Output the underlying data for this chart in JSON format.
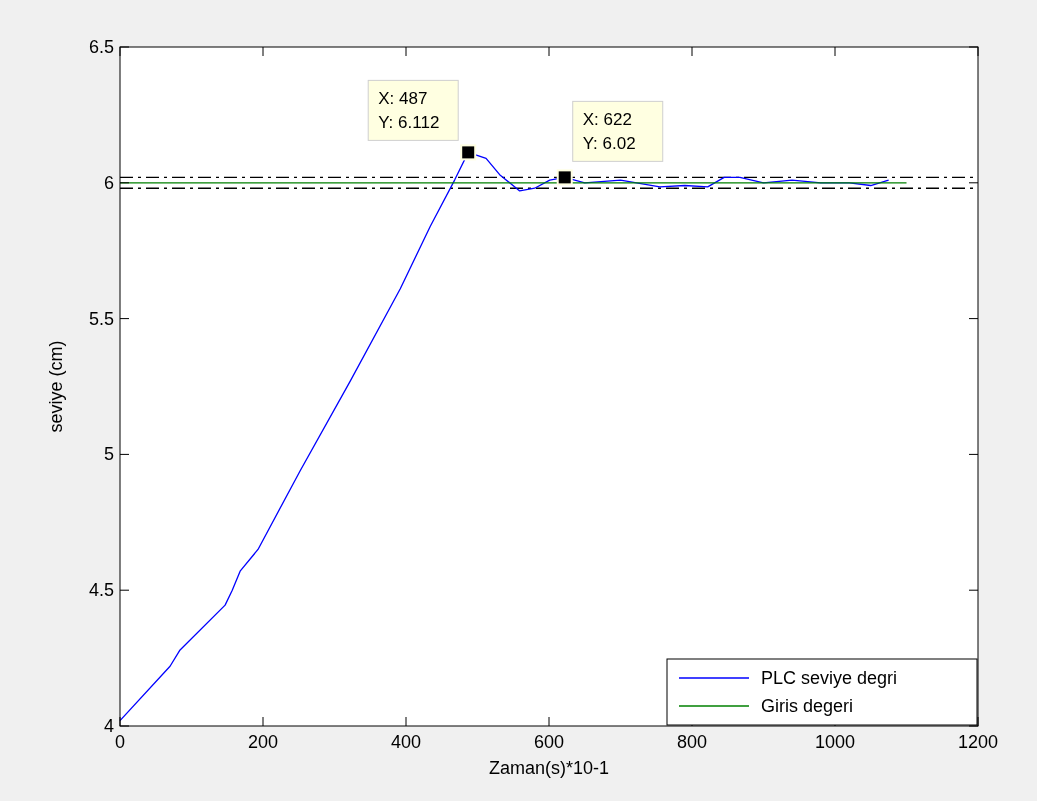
{
  "chart_data": {
    "type": "line",
    "xlabel": "Zaman(s)*10-1",
    "ylabel": "seviye (cm)",
    "xlim": [
      0,
      1200
    ],
    "xticks": [
      0,
      200,
      400,
      600,
      800,
      1000,
      1200
    ],
    "ylim": [
      4,
      6.5
    ],
    "yticks": [
      4,
      4.5,
      5,
      5.5,
      6,
      6.5
    ],
    "grid": false,
    "legend": "bottom right",
    "line_style": "solid",
    "marker": "none",
    "series": [
      {
        "name": "PLC seviye degri",
        "color": "#0000ff",
        "x": [
          0,
          70,
          84,
          147,
          157,
          168,
          193,
          252,
          322,
          392,
          434,
          468,
          487,
          512,
          531,
          559,
          580,
          601,
          622,
          650,
          700,
          755,
          790,
          822,
          845,
          867,
          900,
          940,
          980,
          1020,
          1050,
          1075
        ],
        "values": [
          4.02,
          4.22,
          4.28,
          4.445,
          4.5,
          4.57,
          4.65,
          4.94,
          5.27,
          5.61,
          5.84,
          6.01,
          6.112,
          6.09,
          6.03,
          5.97,
          5.98,
          6.01,
          6.02,
          6.0,
          6.01,
          5.985,
          5.99,
          5.985,
          6.02,
          6.02,
          6.0,
          6.01,
          6.0,
          6.0,
          5.99,
          6.01
        ]
      },
      {
        "name": "Giris degeri",
        "color": "#008000",
        "x": [
          0,
          1100
        ],
        "values": [
          6,
          6
        ]
      }
    ],
    "ref_lines": [
      {
        "axis": "y",
        "value": 6.02,
        "color": "#000000",
        "line_style": "dashed"
      },
      {
        "axis": "y",
        "value": 5.98,
        "color": "#000000",
        "line_style": "dashed"
      }
    ],
    "annotations": [
      {
        "text": "X: 487\nY: 6.112",
        "x": 487,
        "y": 6.112
      },
      {
        "text": "X: 622\nY: 6.02",
        "x": 622,
        "y": 6.02
      }
    ]
  }
}
